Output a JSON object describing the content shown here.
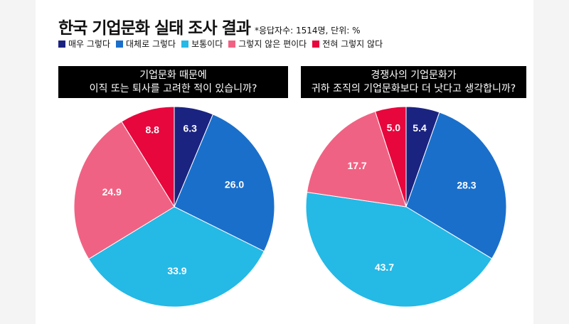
{
  "title": "한국 기업문화 실태 조사 결과",
  "note": "*응답자수: 1514명, 단위: %",
  "chart_data": [
    {
      "type": "pie",
      "title_lines": [
        "기업문화 때문에",
        "이직 또는 퇴사를 고려한 적이 있습니까?"
      ],
      "categories": [
        "매우 그렇다",
        "대체로 그렇다",
        "보통이다",
        "그렇지 않은 편이다",
        "전혀 그렇지 않다"
      ],
      "values": [
        6.3,
        26.0,
        33.9,
        24.9,
        8.8
      ],
      "labels": [
        "6.3",
        "26.0",
        "33.9",
        "24.9",
        "8.8"
      ]
    },
    {
      "type": "pie",
      "title_lines": [
        "경쟁사의 기업문화가",
        "귀하 조직의 기업문화보다 더 낫다고 생각합니까?"
      ],
      "categories": [
        "매우 그렇다",
        "대체로 그렇다",
        "보통이다",
        "그렇지 않은 편이다",
        "전혀 그렇지 않다"
      ],
      "values": [
        5.4,
        28.3,
        43.7,
        17.7,
        5.0
      ],
      "labels": [
        "5.4",
        "28.3",
        "43.7",
        "17.7",
        "5.0"
      ]
    }
  ],
  "legend": [
    {
      "label": "매우 그렇다",
      "color": "#1b2381"
    },
    {
      "label": "대체로 그렇다",
      "color": "#1a6fcb"
    },
    {
      "label": "보통이다",
      "color": "#25b9e6"
    },
    {
      "label": "그렇지 않은 편이다",
      "color": "#f06283"
    },
    {
      "label": "전혀 그렇지 않다",
      "color": "#e8073d"
    }
  ]
}
